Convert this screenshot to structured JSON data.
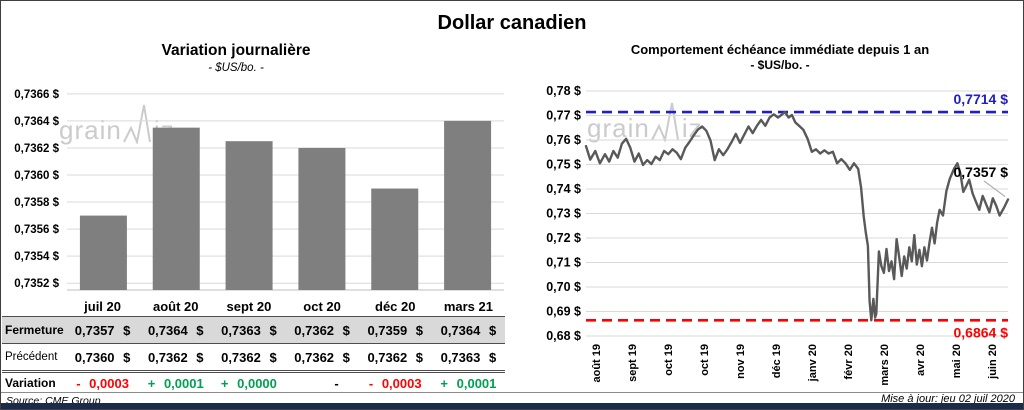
{
  "page": {
    "title": "Dollar canadien",
    "source": "Source: CME Group",
    "updated": "Mise à jour: jeu 02 juil 2020",
    "watermark": "grainwiz"
  },
  "left_chart": {
    "title": "Variation journalière",
    "subtitle": "- $US/bo. -"
  },
  "right_chart": {
    "title": "Comportement échéance immédiate depuis 1 an",
    "subtitle": "- $US/bo. -"
  },
  "table": {
    "row_labels": [
      "Fermeture",
      "Précédent",
      "Variation"
    ],
    "columns": [
      "juil 20",
      "août 20",
      "sept 20",
      "oct 20",
      "déc 20",
      "mars 21"
    ],
    "fermeture": [
      "0,7357 $",
      "0,7364 $",
      "0,7363 $",
      "0,7362 $",
      "0,7359 $",
      "0,7364 $"
    ],
    "precedent": [
      "0,7360 $",
      "0,7362 $",
      "0,7362 $",
      "0,7362 $",
      "0,7362 $",
      "0,7363 $"
    ],
    "variation": [
      {
        "text": "- 0,0003",
        "tone": "negative"
      },
      {
        "text": "+ 0,0001",
        "tone": "positive"
      },
      {
        "text": "+ 0,0000",
        "tone": "positive"
      },
      {
        "text": "-",
        "tone": "neutral"
      },
      {
        "text": "- 0,0003",
        "tone": "negative"
      },
      {
        "text": "+ 0,0001",
        "tone": "positive"
      }
    ]
  },
  "colors": {
    "positive": "#00A050",
    "negative": "#FF0000",
    "bar": "#7F7F7F",
    "line": "#595959",
    "max_line": "#2020C0",
    "min_line": "#FF0000",
    "grid": "#D9D9D9",
    "axis": "#BFBFBF",
    "row_shade": "#D9D9D9",
    "watermark": "#cbcbcb",
    "leader": "#b0b0b0",
    "bottom_bar": "#1b2b4b"
  },
  "chart_data": [
    {
      "type": "bar",
      "title": "Variation journalière",
      "subtitle": "- $US/bo. -",
      "categories": [
        "juil 20",
        "août 20",
        "sept 20",
        "oct 20",
        "déc 20",
        "mars 21"
      ],
      "values": [
        0.7357,
        0.73635,
        0.73625,
        0.7362,
        0.7359,
        0.7364
      ],
      "value_labels": [
        "0,7357 $",
        "0,7364 $",
        "0,7363 $",
        "0,7362 $",
        "0,7359 $",
        "0,7364 $"
      ],
      "ylim": [
        0.73515,
        0.73668
      ],
      "yticks": [
        {
          "value": 0.7366,
          "label": "0,7366 $"
        },
        {
          "value": 0.7364,
          "label": "0,7364 $"
        },
        {
          "value": 0.7362,
          "label": "0,7362 $"
        },
        {
          "value": 0.736,
          "label": "0,7360 $"
        },
        {
          "value": 0.7358,
          "label": "0,7358 $"
        },
        {
          "value": 0.7356,
          "label": "0,7356 $"
        },
        {
          "value": 0.7354,
          "label": "0,7354 $"
        },
        {
          "value": 0.7352,
          "label": "0,7352 $"
        }
      ],
      "grid": true,
      "legend": "none"
    },
    {
      "type": "line",
      "title": "Comportement échéance immédiate depuis 1 an",
      "subtitle": "- $US/bo. -",
      "x_tick_labels": [
        "août 19",
        "sept 19",
        "oct 19",
        "oct 19",
        "nov 19",
        "déc 19",
        "janv 20",
        "févr 20",
        "mars 20",
        "avr 20",
        "mai 20",
        "juin 20"
      ],
      "ylim": [
        0.68,
        0.7825
      ],
      "yticks": [
        {
          "value": 0.78,
          "label": "0,78 $"
        },
        {
          "value": 0.77,
          "label": "0,77 $"
        },
        {
          "value": 0.76,
          "label": "0,76 $"
        },
        {
          "value": 0.75,
          "label": "0,75 $"
        },
        {
          "value": 0.74,
          "label": "0,74 $"
        },
        {
          "value": 0.73,
          "label": "0,73 $"
        },
        {
          "value": 0.72,
          "label": "0,72 $"
        },
        {
          "value": 0.71,
          "label": "0,71 $"
        },
        {
          "value": 0.7,
          "label": "0,70 $"
        },
        {
          "value": 0.69,
          "label": "0,69 $"
        },
        {
          "value": 0.68,
          "label": "0,68 $"
        }
      ],
      "max_annotation": {
        "value": 0.7714,
        "label": "0,7714 $"
      },
      "min_annotation": {
        "value": 0.6864,
        "label": "0,6864 $"
      },
      "last_annotation": {
        "value": 0.7357,
        "label": "0,7357 $"
      },
      "grid": true,
      "legend": "none",
      "points": [
        [
          0.0,
          0.7575
        ],
        [
          0.01,
          0.752
        ],
        [
          0.022,
          0.7555
        ],
        [
          0.033,
          0.7505
        ],
        [
          0.045,
          0.7542
        ],
        [
          0.055,
          0.7512
        ],
        [
          0.065,
          0.7555
        ],
        [
          0.075,
          0.7528
        ],
        [
          0.085,
          0.7585
        ],
        [
          0.095,
          0.7605
        ],
        [
          0.105,
          0.7568
        ],
        [
          0.115,
          0.7512
        ],
        [
          0.125,
          0.7545
        ],
        [
          0.135,
          0.7498
        ],
        [
          0.145,
          0.7518
        ],
        [
          0.155,
          0.7502
        ],
        [
          0.165,
          0.7532
        ],
        [
          0.175,
          0.7518
        ],
        [
          0.185,
          0.7555
        ],
        [
          0.195,
          0.7542
        ],
        [
          0.205,
          0.7562
        ],
        [
          0.215,
          0.7548
        ],
        [
          0.225,
          0.7522
        ],
        [
          0.235,
          0.7568
        ],
        [
          0.245,
          0.7592
        ],
        [
          0.255,
          0.7618
        ],
        [
          0.265,
          0.7642
        ],
        [
          0.275,
          0.7655
        ],
        [
          0.285,
          0.7638
        ],
        [
          0.295,
          0.7598
        ],
        [
          0.305,
          0.7518
        ],
        [
          0.315,
          0.7562
        ],
        [
          0.325,
          0.7538
        ],
        [
          0.335,
          0.7562
        ],
        [
          0.345,
          0.7592
        ],
        [
          0.355,
          0.7625
        ],
        [
          0.365,
          0.7588
        ],
        [
          0.375,
          0.7622
        ],
        [
          0.385,
          0.7655
        ],
        [
          0.395,
          0.7628
        ],
        [
          0.405,
          0.7658
        ],
        [
          0.415,
          0.7682
        ],
        [
          0.425,
          0.7658
        ],
        [
          0.435,
          0.7692
        ],
        [
          0.445,
          0.7705
        ],
        [
          0.455,
          0.7692
        ],
        [
          0.463,
          0.7702
        ],
        [
          0.471,
          0.7714
        ],
        [
          0.48,
          0.7692
        ],
        [
          0.488,
          0.7702
        ],
        [
          0.496,
          0.7672
        ],
        [
          0.505,
          0.7658
        ],
        [
          0.515,
          0.7642
        ],
        [
          0.525,
          0.7605
        ],
        [
          0.535,
          0.7552
        ],
        [
          0.545,
          0.7562
        ],
        [
          0.555,
          0.7545
        ],
        [
          0.565,
          0.7558
        ],
        [
          0.575,
          0.7545
        ],
        [
          0.585,
          0.7552
        ],
        [
          0.595,
          0.7505
        ],
        [
          0.605,
          0.7522
        ],
        [
          0.615,
          0.7505
        ],
        [
          0.625,
          0.7478
        ],
        [
          0.635,
          0.7505
        ],
        [
          0.645,
          0.7482
        ],
        [
          0.652,
          0.7405
        ],
        [
          0.658,
          0.7288
        ],
        [
          0.663,
          0.7222
        ],
        [
          0.668,
          0.7168
        ],
        [
          0.672,
          0.6942
        ],
        [
          0.676,
          0.6864
        ],
        [
          0.681,
          0.6952
        ],
        [
          0.685,
          0.6875
        ],
        [
          0.688,
          0.6892
        ],
        [
          0.694,
          0.7145
        ],
        [
          0.7,
          0.7085
        ],
        [
          0.706,
          0.7058
        ],
        [
          0.712,
          0.7155
        ],
        [
          0.718,
          0.7065
        ],
        [
          0.724,
          0.7105
        ],
        [
          0.73,
          0.7032
        ],
        [
          0.736,
          0.7195
        ],
        [
          0.742,
          0.7125
        ],
        [
          0.748,
          0.7045
        ],
        [
          0.754,
          0.7125
        ],
        [
          0.76,
          0.7075
        ],
        [
          0.766,
          0.7162
        ],
        [
          0.772,
          0.7105
        ],
        [
          0.778,
          0.7212
        ],
        [
          0.784,
          0.7092
        ],
        [
          0.79,
          0.7152
        ],
        [
          0.796,
          0.7085
        ],
        [
          0.802,
          0.7162
        ],
        [
          0.808,
          0.7108
        ],
        [
          0.814,
          0.7182
        ],
        [
          0.82,
          0.7242
        ],
        [
          0.826,
          0.7178
        ],
        [
          0.832,
          0.7262
        ],
        [
          0.838,
          0.7315
        ],
        [
          0.846,
          0.7292
        ],
        [
          0.854,
          0.7392
        ],
        [
          0.862,
          0.7442
        ],
        [
          0.872,
          0.7482
        ],
        [
          0.88,
          0.7505
        ],
        [
          0.887,
          0.7465
        ],
        [
          0.894,
          0.7388
        ],
        [
          0.901,
          0.7412
        ],
        [
          0.908,
          0.7438
        ],
        [
          0.916,
          0.7382
        ],
        [
          0.924,
          0.7348
        ],
        [
          0.932,
          0.7315
        ],
        [
          0.94,
          0.7372
        ],
        [
          0.948,
          0.7338
        ],
        [
          0.956,
          0.7305
        ],
        [
          0.964,
          0.7362
        ],
        [
          0.972,
          0.7332
        ],
        [
          0.98,
          0.7292
        ],
        [
          0.99,
          0.7322
        ],
        [
          1.0,
          0.7357
        ]
      ]
    }
  ]
}
